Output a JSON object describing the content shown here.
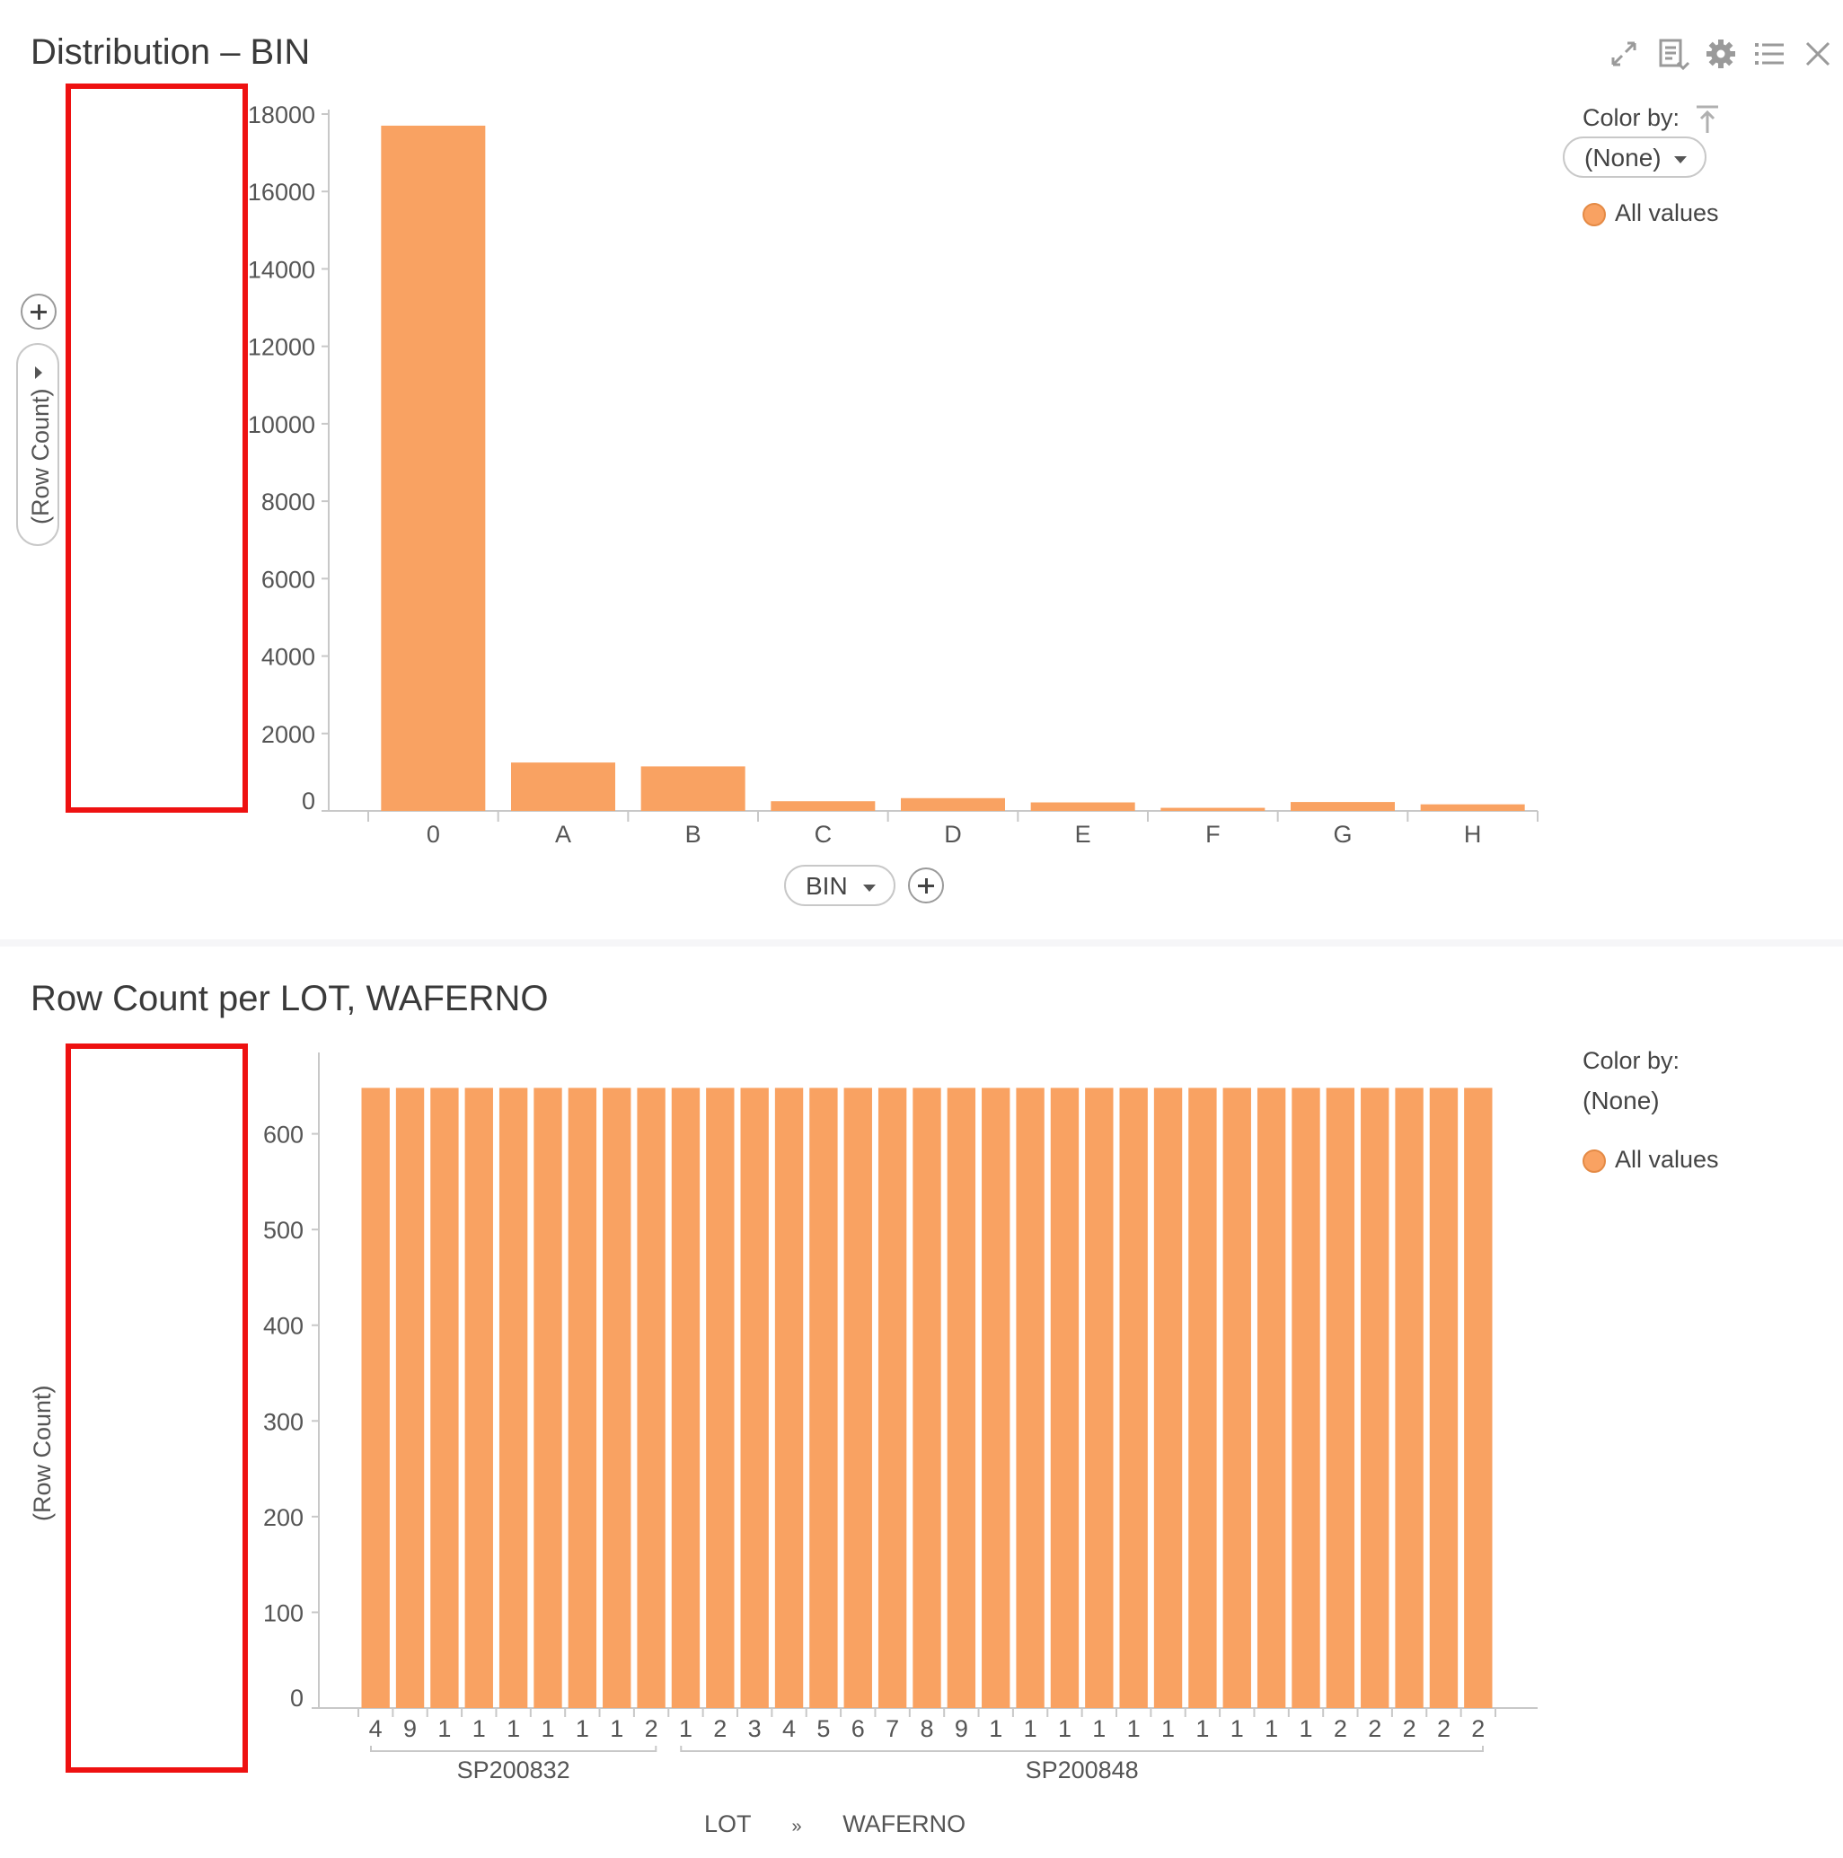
{
  "panel1": {
    "title": "Distribution – BIN",
    "color_by_label": "Color by:",
    "color_by_value": "(None)",
    "legend_item": "All values",
    "y_axis_label": "(Row Count)",
    "x_axis_selector": "BIN",
    "toolbar": [
      "expand-icon",
      "data-table-icon",
      "gear-icon",
      "list-icon",
      "close-icon"
    ]
  },
  "panel2": {
    "title": "Row Count per LOT, WAFERNO",
    "color_by_label": "Color by:",
    "color_by_value": "(None)",
    "legend_item": "All values",
    "y_axis_label": "(Row Count)",
    "hierarchy": [
      "LOT",
      "WAFERNO"
    ],
    "hierarchy_separator": "»"
  },
  "colors": {
    "bar": "#f9a262",
    "bar_edge": "#f29a58",
    "axis": "#c8c8c8",
    "highlight_box": "#ee1111"
  },
  "chart_data": [
    {
      "type": "bar",
      "title": "Distribution – BIN",
      "xlabel": "BIN",
      "ylabel": "(Row Count)",
      "categories": [
        "0",
        "A",
        "B",
        "C",
        "D",
        "E",
        "F",
        "G",
        "H"
      ],
      "values": [
        17700,
        1250,
        1150,
        250,
        330,
        220,
        80,
        230,
        170
      ],
      "yticks": [
        "0",
        "2000",
        "4000",
        "6000",
        "8000",
        "10000",
        "12000",
        "14000",
        "16000",
        "18000"
      ],
      "ylim": [
        0,
        18000
      ],
      "legend": "All values",
      "grid": false
    },
    {
      "type": "bar",
      "title": "Row Count per LOT, WAFERNO",
      "xlabel": "LOT » WAFERNO",
      "ylabel": "(Row Count)",
      "categories": [
        "4",
        "9",
        "1",
        "1",
        "1",
        "1",
        "1",
        "1",
        "2",
        "1",
        "2",
        "3",
        "4",
        "5",
        "6",
        "7",
        "8",
        "9",
        "1",
        "1",
        "1",
        "1",
        "1",
        "1",
        "1",
        "1",
        "1",
        "1",
        "2",
        "2",
        "2",
        "2",
        "2"
      ],
      "groups": [
        {
          "name": "SP200832",
          "count": 9
        },
        {
          "name": "SP200848",
          "count": 24
        }
      ],
      "values": [
        648,
        648,
        648,
        648,
        648,
        648,
        648,
        648,
        648,
        648,
        648,
        648,
        648,
        648,
        648,
        648,
        648,
        648,
        648,
        648,
        648,
        648,
        648,
        648,
        648,
        648,
        648,
        648,
        648,
        648,
        648,
        648,
        648
      ],
      "yticks": [
        "0",
        "100",
        "200",
        "300",
        "400",
        "500",
        "600"
      ],
      "ylim": [
        0,
        685
      ],
      "legend": "All values",
      "grid": false
    }
  ]
}
